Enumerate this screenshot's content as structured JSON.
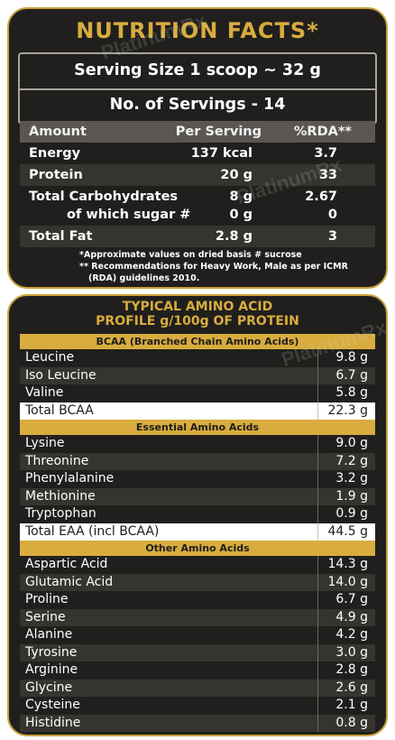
{
  "nutrition": {
    "title": "NUTRITION FACTS*",
    "serving_size": "Serving Size 1 scoop ~ 32 g",
    "servings": "No. of Servings - 14",
    "headers": [
      "Amount",
      "Per Serving",
      "%RDA**"
    ],
    "rows": [
      {
        "name": "Energy",
        "per": "137 kcal",
        "rda": "3.7"
      },
      {
        "name": "Protein",
        "per": "20 g",
        "rda": "33"
      },
      {
        "name": "Total Carbohydrates",
        "per": "8 g",
        "rda": "2.67"
      },
      {
        "name": "of which sugar #",
        "per": "0 g",
        "rda": "0"
      },
      {
        "name": "Total Fat",
        "per": "2.8 g",
        "rda": "3"
      }
    ],
    "footnote1": "*Approximate values on dried basis # sucrose",
    "footnote2": "** Recommendations for Heavy Work, Male as per ICMR (RDA) guidelines 2010."
  },
  "amino": {
    "title_line1": "TYPICAL AMINO ACID",
    "title_line2": "PROFILE g/100g OF PROTEIN",
    "bcaa_header": "BCAA (Branched Chain Amino Acids)",
    "bcaa": [
      {
        "name": "Leucine",
        "value": "9.8 g"
      },
      {
        "name": "Iso Leucine",
        "value": "6.7 g"
      },
      {
        "name": "Valine",
        "value": "5.8 g"
      }
    ],
    "total_bcaa": {
      "name": "Total BCAA",
      "value": "22.3 g"
    },
    "essential_header": "Essential Amino Acids",
    "essential": [
      {
        "name": "Lysine",
        "value": "9.0 g"
      },
      {
        "name": "Threonine",
        "value": "7.2 g"
      },
      {
        "name": "Phenylalanine",
        "value": "3.2 g"
      },
      {
        "name": "Methionine",
        "value": "1.9 g"
      },
      {
        "name": "Tryptophan",
        "value": "0.9 g"
      }
    ],
    "total_eaa": {
      "name": "Total EAA (incl BCAA)",
      "value": "44.5 g"
    },
    "other_header": "Other Amino Acids",
    "other": [
      {
        "name": "Aspartic Acid",
        "value": "14.3 g"
      },
      {
        "name": "Glutamic Acid",
        "value": "14.0 g"
      },
      {
        "name": "Proline",
        "value": "6.7 g"
      },
      {
        "name": "Serine",
        "value": "4.9 g"
      },
      {
        "name": "Alanine",
        "value": "4.2 g"
      },
      {
        "name": "Tyrosine",
        "value": "3.0 g"
      },
      {
        "name": "Arginine",
        "value": "2.8 g"
      },
      {
        "name": "Glycine",
        "value": "2.6 g"
      },
      {
        "name": "Cysteine",
        "value": "2.1 g"
      },
      {
        "name": "Histidine",
        "value": "0.8 g"
      }
    ]
  },
  "watermark": "PlatinumRx",
  "colors": {
    "gold": "#d8ac3e",
    "panel_bg": "#201f1d",
    "row_alt": "#36342f"
  }
}
